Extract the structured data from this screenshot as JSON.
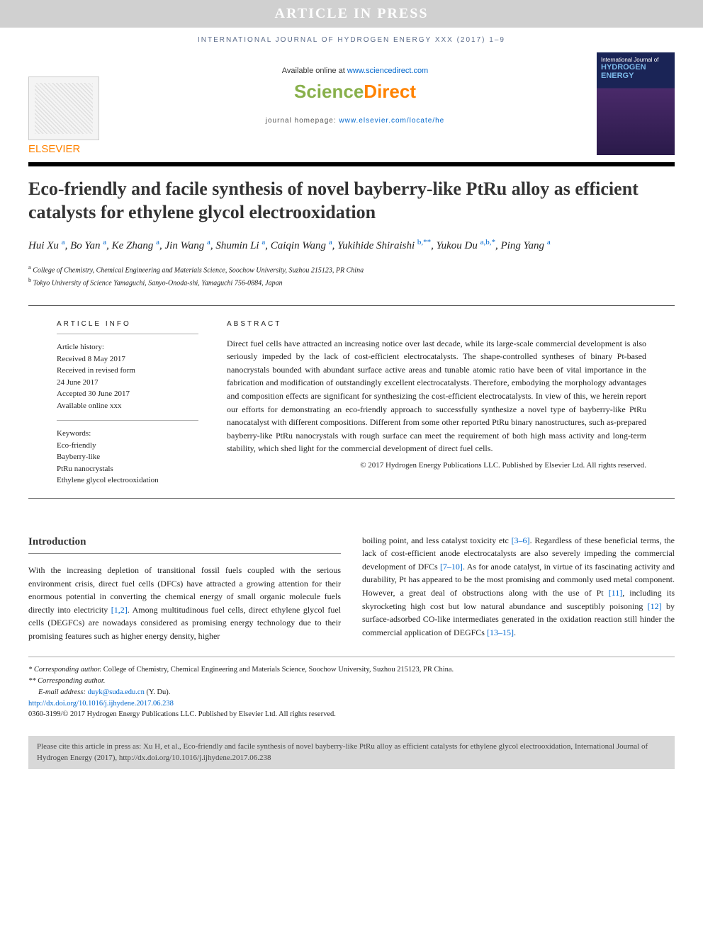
{
  "banner": "ARTICLE IN PRESS",
  "journal_ref": "INTERNATIONAL JOURNAL OF HYDROGEN ENERGY XXX (2017) 1–9",
  "publisher_logo": "ELSEVIER",
  "available_text": "Available online at ",
  "available_url": "www.sciencedirect.com",
  "sd_logo_1": "Science",
  "sd_logo_2": "Direct",
  "homepage_label": "journal homepage: ",
  "homepage_url": "www.elsevier.com/locate/he",
  "cover_top": "International Journal of",
  "cover_title_1": "HYDROGEN",
  "cover_title_2": "ENERGY",
  "title": "Eco-friendly and facile synthesis of novel bayberry-like PtRu alloy as efficient catalysts for ethylene glycol electrooxidation",
  "authors_html": [
    "Hui Xu ",
    "a",
    ", Bo Yan ",
    "a",
    ", Ke Zhang ",
    "a",
    ", Jin Wang ",
    "a",
    ", Shumin Li ",
    "a",
    ", Caiqin Wang ",
    "a",
    ", Yukihide Shiraishi ",
    "b,**",
    ", Yukou Du ",
    "a,b,*",
    ", Ping Yang ",
    "a"
  ],
  "affil_a": "College of Chemistry, Chemical Engineering and Materials Science, Soochow University, Suzhou 215123, PR China",
  "affil_b": "Tokyo University of Science Yamaguchi, Sanyo-Onoda-shi, Yamaguchi 756-0884, Japan",
  "info_heading": "ARTICLE INFO",
  "history_label": "Article history:",
  "received": "Received 8 May 2017",
  "revised_l1": "Received in revised form",
  "revised_l2": "24 June 2017",
  "accepted": "Accepted 30 June 2017",
  "avail_online": "Available online xxx",
  "kw_label": "Keywords:",
  "kw1": "Eco-friendly",
  "kw2": "Bayberry-like",
  "kw3": "PtRu nanocrystals",
  "kw4": "Ethylene glycol electrooxidation",
  "abstract_heading": "ABSTRACT",
  "abstract": "Direct fuel cells have attracted an increasing notice over last decade, while its large-scale commercial development is also seriously impeded by the lack of cost-efficient electrocatalysts. The shape-controlled syntheses of binary Pt-based nanocrystals bounded with abundant surface active areas and tunable atomic ratio have been of vital importance in the fabrication and modification of outstandingly excellent electrocatalysts. Therefore, embodying the morphology advantages and composition effects are significant for synthesizing the cost-efficient electrocatalysts. In view of this, we herein report our efforts for demonstrating an eco-friendly approach to successfully synthesize a novel type of bayberry-like PtRu nanocatalyst with different compositions. Different from some other reported PtRu binary nanostructures, such as-prepared bayberry-like PtRu nanocrystals with rough surface can meet the requirement of both high mass activity and long-term stability, which shed light for the commercial development of direct fuel cells.",
  "abs_copy": "© 2017 Hydrogen Energy Publications LLC. Published by Elsevier Ltd. All rights reserved.",
  "intro_heading": "Introduction",
  "intro_col1": "With the increasing depletion of transitional fossil fuels coupled with the serious environment crisis, direct fuel cells (DFCs) have attracted a growing attention for their enormous potential in converting the chemical energy of small organic molecule fuels directly into electricity [1,2]. Among multitudinous fuel cells, direct ethylene glycol fuel cells (DEGFCs) are nowadays considered as promising energy technology due to their promising features such as higher energy density, higher",
  "intro_col2": "boiling point, and less catalyst toxicity etc [3–6]. Regardless of these beneficial terms, the lack of cost-efficient anode electrocatalysts are also severely impeding the commercial development of DFCs [7–10]. As for anode catalyst, in virtue of its fascinating activity and durability, Pt has appeared to be the most promising and commonly used metal component. However, a great deal of obstructions along with the use of Pt [11], including its skyrocketing high cost but low natural abundance and susceptibly poisoning [12] by surface-adsorbed CO-like intermediates generated in the oxidation reaction still hinder the commercial application of DEGFCs [13–15].",
  "ref12": "[1,2]",
  "ref36": "[3–6]",
  "ref710": "[7–10]",
  "ref11": "[11]",
  "ref12b": "[12]",
  "ref1315": "[13–15]",
  "fn_corr1_label": "* Corresponding author.",
  "fn_corr1_text": " College of Chemistry, Chemical Engineering and Materials Science, Soochow University, Suzhou 215123, PR China.",
  "fn_corr2": "** Corresponding author.",
  "fn_email_label": "E-mail address: ",
  "fn_email": "duyk@suda.edu.cn",
  "fn_email_who": " (Y. Du).",
  "fn_doi": "http://dx.doi.org/10.1016/j.ijhydene.2017.06.238",
  "fn_copy": "0360-3199/© 2017 Hydrogen Energy Publications LLC. Published by Elsevier Ltd. All rights reserved.",
  "cite_box": "Please cite this article in press as: Xu H, et al., Eco-friendly and facile synthesis of novel bayberry-like PtRu alloy as efficient catalysts for ethylene glycol electrooxidation, International Journal of Hydrogen Energy (2017), http://dx.doi.org/10.1016/j.ijhydene.2017.06.238"
}
